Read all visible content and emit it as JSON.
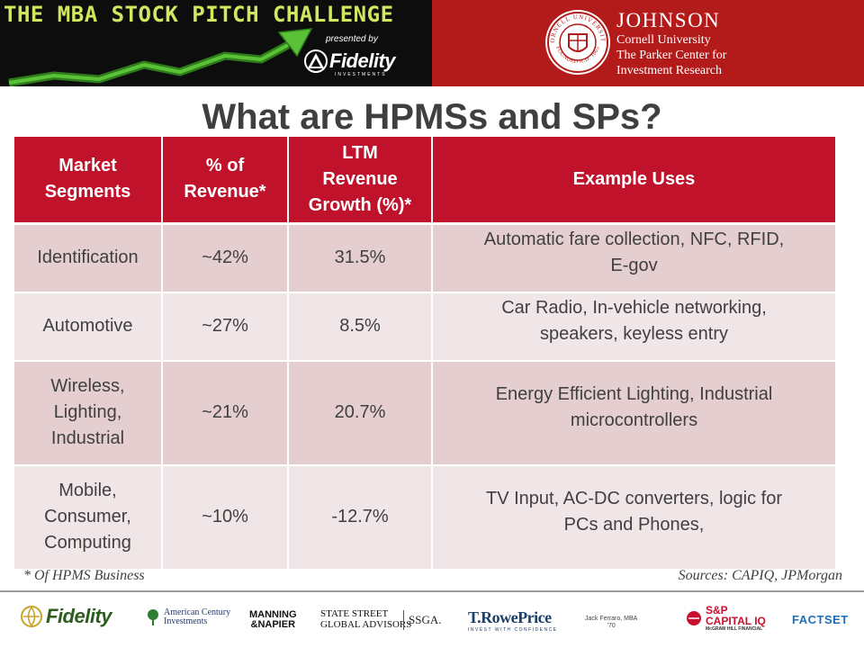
{
  "banner": {
    "challenge_title": "THE MBA STOCK PITCH CHALLENGE",
    "presented_by": "presented by",
    "fidelity_name": "Fidelity",
    "fidelity_tagline": "INVESTMENTS",
    "seal_top": "CORNELL UNIVERSITY",
    "seal_bottom": "FOUNDED A.D. 1865",
    "johnson_name": "JOHNSON",
    "johnson_line1": "Cornell University",
    "johnson_line2": "The Parker Center for",
    "johnson_line3": "Investment Research"
  },
  "title": "What are HPMSs and SPs?",
  "table": {
    "headers": [
      {
        "lines": [
          "Market",
          "Segments"
        ]
      },
      {
        "lines": [
          "% of",
          "Revenue*"
        ]
      },
      {
        "lines": [
          "LTM",
          "Revenue",
          "Growth (%)*"
        ]
      },
      {
        "lines": [
          "Example Uses"
        ]
      }
    ],
    "rows": [
      {
        "segment": [
          "Identification"
        ],
        "revenue": "~42%",
        "growth": "31.5%",
        "uses": [
          "Automatic fare collection, NFC, RFID,",
          "E-gov"
        ]
      },
      {
        "segment": [
          "Automotive"
        ],
        "revenue": "~27%",
        "growth": "8.5%",
        "uses": [
          "Car Radio, In-vehicle networking,",
          "speakers, keyless entry"
        ]
      },
      {
        "segment": [
          "Wireless,",
          "Lighting,",
          "Industrial"
        ],
        "revenue": "~21%",
        "growth": "20.7%",
        "uses": [
          "Energy Efficient Lighting, Industrial",
          "microcontrollers"
        ]
      },
      {
        "segment": [
          "Mobile,",
          "Consumer,",
          "Computing"
        ],
        "revenue": "~10%",
        "growth": "-12.7%",
        "uses": [
          "TV Input, AC-DC converters, logic for",
          "PCs and Phones,"
        ]
      }
    ]
  },
  "footnote": "* Of HPMS Business",
  "sources": "Sources: CAPIQ, JPMorgan",
  "sponsors": {
    "fidelity": "Fidelity",
    "american_century_1": "American Century",
    "american_century_2": "Investments",
    "manning_1": "MANNING",
    "manning_2": "&NAPIER",
    "state_street_1": "STATE STREET",
    "state_street_2": "GLOBAL ADVISORS",
    "ssga": "SSGA.",
    "trowe": "T.RowePrice",
    "trowe_tag": "INVEST WITH CONFIDENCE",
    "credit_1": "Jack Ferraro, MBA",
    "credit_2": "'70",
    "sp_1": "S&P",
    "sp_2": "CAPITAL IQ",
    "sp_3": "McGRAW HILL FINANCIAL",
    "factset": "FACTSET"
  },
  "colors": {
    "header_red": "#c0122b",
    "banner_red": "#b31b1b",
    "row_dark": "#e5ced0",
    "row_light": "#f1e6e7",
    "arrow_green": "#4caf2a"
  },
  "icons": {
    "arrow": "rising-arrow-icon",
    "fidelity_mark": "fidelity-pyramid-icon",
    "seal": "cornell-seal-icon"
  }
}
